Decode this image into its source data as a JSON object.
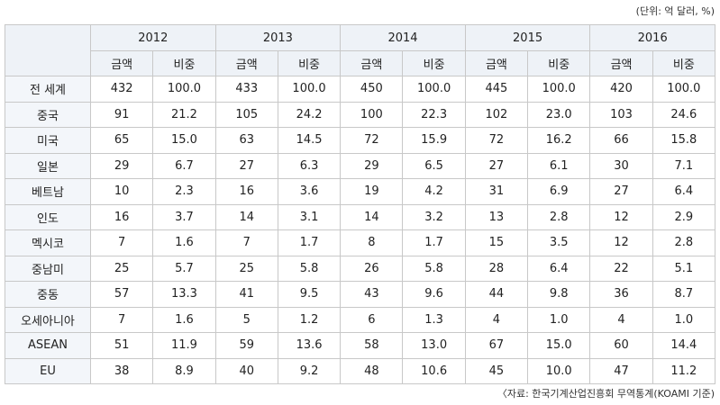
{
  "unit_label": "(단위: 억 달러, %)",
  "years": [
    "2012",
    "2013",
    "2014",
    "2015",
    "2016"
  ],
  "sub_headers": {
    "amount": "금액",
    "share": "비중"
  },
  "rows": [
    {
      "region": "전 세계",
      "values": [
        "432",
        "100.0",
        "433",
        "100.0",
        "450",
        "100.0",
        "445",
        "100.0",
        "420",
        "100.0"
      ]
    },
    {
      "region": "중국",
      "values": [
        "91",
        "21.2",
        "105",
        "24.2",
        "100",
        "22.3",
        "102",
        "23.0",
        "103",
        "24.6"
      ]
    },
    {
      "region": "미국",
      "values": [
        "65",
        "15.0",
        "63",
        "14.5",
        "72",
        "15.9",
        "72",
        "16.2",
        "66",
        "15.8"
      ]
    },
    {
      "region": "일본",
      "values": [
        "29",
        "6.7",
        "27",
        "6.3",
        "29",
        "6.5",
        "27",
        "6.1",
        "30",
        "7.1"
      ]
    },
    {
      "region": "베트남",
      "values": [
        "10",
        "2.3",
        "16",
        "3.6",
        "19",
        "4.2",
        "31",
        "6.9",
        "27",
        "6.4"
      ]
    },
    {
      "region": "인도",
      "values": [
        "16",
        "3.7",
        "14",
        "3.1",
        "14",
        "3.2",
        "13",
        "2.8",
        "12",
        "2.9"
      ]
    },
    {
      "region": "멕시코",
      "values": [
        "7",
        "1.6",
        "7",
        "1.7",
        "8",
        "1.7",
        "15",
        "3.5",
        "12",
        "2.8"
      ]
    },
    {
      "region": "중남미",
      "values": [
        "25",
        "5.7",
        "25",
        "5.8",
        "26",
        "5.8",
        "28",
        "6.4",
        "22",
        "5.1"
      ]
    },
    {
      "region": "중동",
      "values": [
        "57",
        "13.3",
        "41",
        "9.5",
        "43",
        "9.6",
        "44",
        "9.8",
        "36",
        "8.7"
      ]
    },
    {
      "region": "오세아니아",
      "values": [
        "7",
        "1.6",
        "5",
        "1.2",
        "6",
        "1.3",
        "4",
        "1.0",
        "4",
        "1.0"
      ]
    },
    {
      "region": "ASEAN",
      "values": [
        "51",
        "11.9",
        "59",
        "13.6",
        "58",
        "13.0",
        "67",
        "15.0",
        "60",
        "14.4"
      ]
    },
    {
      "region": "EU",
      "values": [
        "38",
        "8.9",
        "40",
        "9.2",
        "48",
        "10.6",
        "45",
        "10.0",
        "47",
        "11.2"
      ]
    }
  ],
  "source_note": "〈자료: 한국기계산업진흥회 무역통계(KOAMI 기준)"
}
